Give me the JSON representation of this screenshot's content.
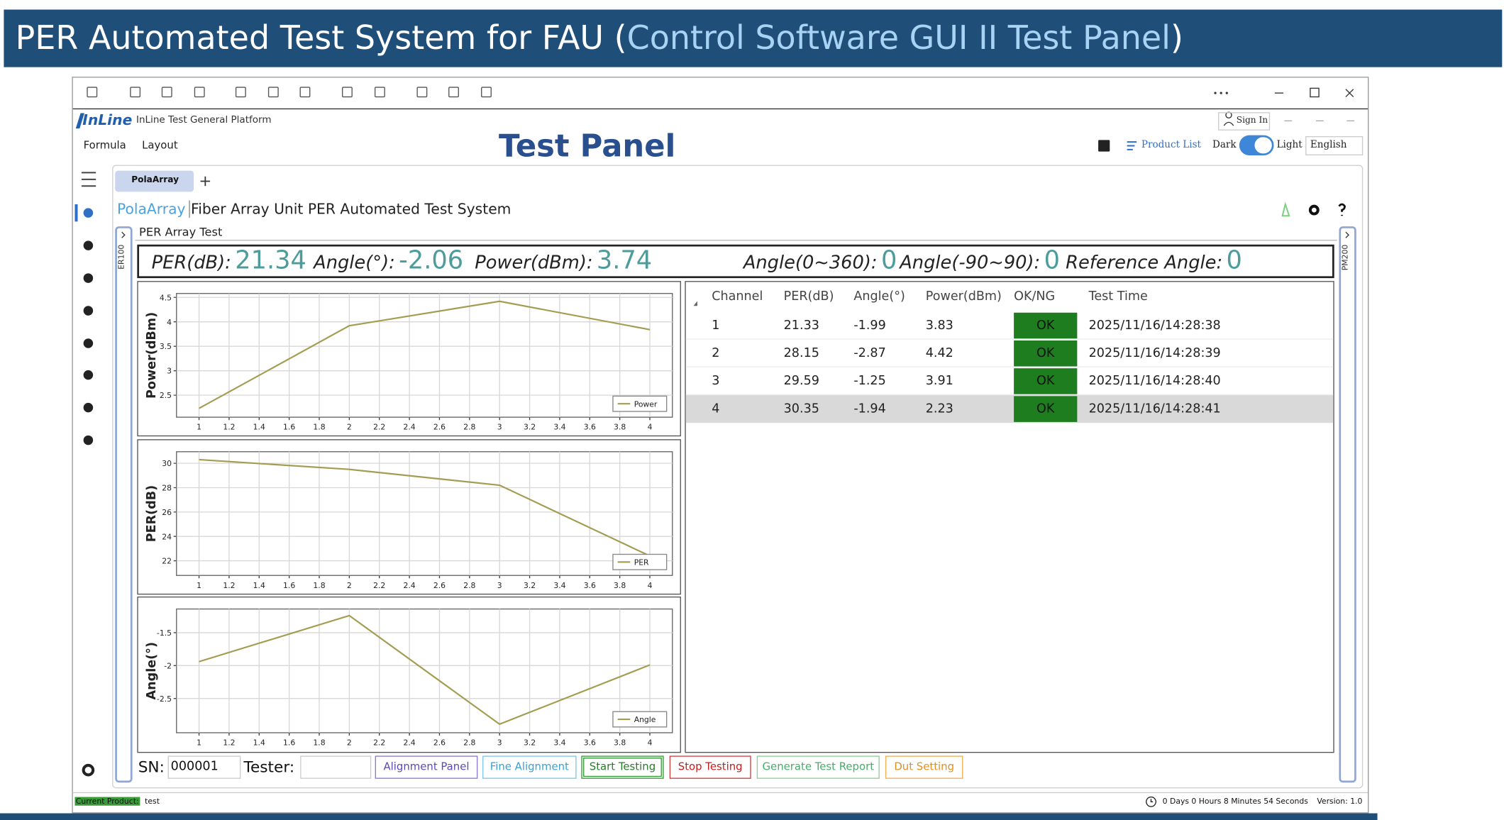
{
  "slide": {
    "title_prefix": "PER Automated Test System for FAU (",
    "title_highlight": "Control Software GUI II Test Panel",
    "title_suffix": ")"
  },
  "app": {
    "logo": "InLine",
    "platform": "InLine Test General Platform",
    "sign_in": "Sign In",
    "menu": [
      "Formula",
      "Layout"
    ],
    "panel_title": "Test Panel",
    "product_list": "Product List",
    "theme_dark": "Dark",
    "theme_light": "Light",
    "language": "English"
  },
  "tab": "PolaArray",
  "heading": {
    "brand": "PolaArray",
    "title": "Fiber Array Unit PER Automated Test System"
  },
  "section": "PER Array Test",
  "side_labels": [
    "ER100",
    "PM200"
  ],
  "readouts": [
    {
      "label": "PER(dB):",
      "value": "21.34"
    },
    {
      "label": "Angle(°):",
      "value": "-2.06"
    },
    {
      "label": "Power(dBm):",
      "value": "3.74"
    },
    {
      "label": "Angle(0~360):",
      "value": "0"
    },
    {
      "label": "Angle(-90~90):",
      "value": "0"
    },
    {
      "label": "Reference Angle:",
      "value": "0"
    }
  ],
  "table": {
    "columns": [
      "Channel",
      "PER(dB)",
      "Angle(°)",
      "Power(dBm)",
      "OK/NG",
      "Test Time"
    ],
    "rows": [
      [
        "1",
        "21.33",
        "-1.99",
        "3.83",
        "OK",
        "2025/11/16/14:28:38"
      ],
      [
        "2",
        "28.15",
        "-2.87",
        "4.42",
        "OK",
        "2025/11/16/14:28:39"
      ],
      [
        "3",
        "29.59",
        "-1.25",
        "3.91",
        "OK",
        "2025/11/16/14:28:40"
      ],
      [
        "4",
        "30.35",
        "-1.94",
        "2.23",
        "OK",
        "2025/11/16/14:28:41"
      ]
    ]
  },
  "form": {
    "sn_label": "SN:",
    "sn": "000001",
    "tester_label": "Tester:",
    "buttons": [
      "Alignment Panel",
      "Fine Alignment",
      "Start Testing",
      "Stop Testing",
      "Generate Test Report",
      "Dut Setting"
    ]
  },
  "status": {
    "product_label": "Current Product:",
    "product": "test",
    "uptime": "0 Days 0 Hours 8 Minutes 54 Seconds",
    "version": "Version: 1.0"
  },
  "chart_data": [
    {
      "type": "line",
      "y_label": "Power(dBm)",
      "x": [
        1,
        2,
        3,
        4
      ],
      "series": [
        {
          "name": "Power",
          "color": "#a39d52",
          "values": [
            2.23,
            3.92,
            4.42,
            3.84
          ]
        }
      ],
      "xlim": [
        0.85,
        4.15
      ],
      "xticks": [
        1,
        1.2,
        1.4,
        1.6,
        1.8,
        2,
        2.2,
        2.4,
        2.6,
        2.8,
        3,
        3.2,
        3.4,
        3.6,
        3.8,
        4
      ],
      "ylim": [
        2.05,
        4.58
      ],
      "yticks": [
        2.5,
        3,
        3.5,
        4,
        4.5
      ],
      "grid": true,
      "legend": "lower right"
    },
    {
      "type": "line",
      "y_label": "PER(dB)",
      "x": [
        1,
        2,
        3,
        4
      ],
      "series": [
        {
          "name": "PER",
          "color": "#a39d52",
          "values": [
            30.3,
            29.5,
            28.2,
            22.4
          ]
        }
      ],
      "xlim": [
        0.85,
        4.15
      ],
      "xticks": [
        1,
        1.2,
        1.4,
        1.6,
        1.8,
        2,
        2.2,
        2.4,
        2.6,
        2.8,
        3,
        3.2,
        3.4,
        3.6,
        3.8,
        4
      ],
      "ylim": [
        20.8,
        30.95
      ],
      "yticks": [
        22,
        24,
        26,
        28,
        30
      ],
      "grid": true,
      "legend": "lower right"
    },
    {
      "type": "line",
      "y_label": "Angle(°)",
      "x": [
        1,
        2,
        3,
        4
      ],
      "series": [
        {
          "name": "Angle",
          "color": "#a39d52",
          "values": [
            -1.94,
            -1.24,
            -2.89,
            -1.99
          ]
        }
      ],
      "xlim": [
        0.85,
        4.15
      ],
      "xticks": [
        1,
        1.2,
        1.4,
        1.6,
        1.8,
        2,
        2.2,
        2.4,
        2.6,
        2.8,
        3,
        3.2,
        3.4,
        3.6,
        3.8,
        4
      ],
      "ylim": [
        -3.02,
        -1.14
      ],
      "yticks": [
        -2.5,
        -2,
        -1.5
      ],
      "grid": true,
      "legend": "lower right"
    }
  ]
}
